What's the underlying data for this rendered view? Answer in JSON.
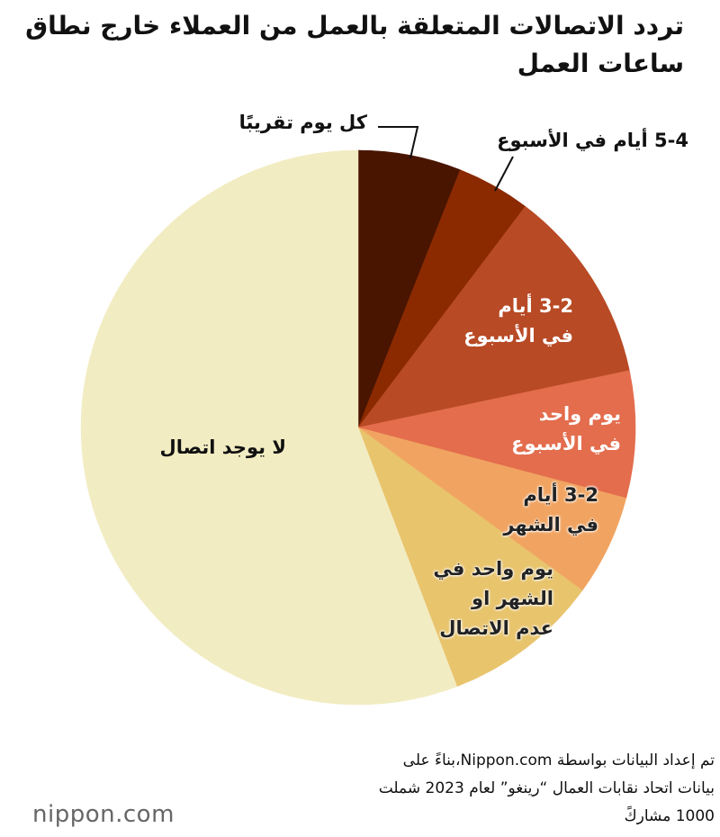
{
  "chart_data": {
    "type": "pie",
    "title": "تردد الاتصالات المتعلقة بالعمل من العملاء خارج نطاق ساعات العمل",
    "categories": [
      "كل يوم تقريبًا",
      "5-4 أيام في الأسبوع",
      "3-2 أيام\nفي الأسبوع",
      "يوم واحد\nفي الأسبوع",
      "3-2 أيام\nفي الشهر",
      "يوم واحد في\nالشهر او\nعدم الاتصال",
      "لا يوجد اتصال"
    ],
    "values": [
      6.0,
      4.3,
      11.4,
      7.4,
      5.9,
      9.2,
      55.8
    ],
    "colors": [
      "#4a1500",
      "#8b2a00",
      "#b84a25",
      "#e36d4d",
      "#f1a461",
      "#e8c46d",
      "#f2ecc2"
    ],
    "source": "تم إعداد البيانات بواسطة Nippon.com،بناءً على\nبيانات اتحاد نقابات العمال “رينغو” لعام 2023 شملت\n1000 مشاركً",
    "logo": "nippon.com"
  }
}
